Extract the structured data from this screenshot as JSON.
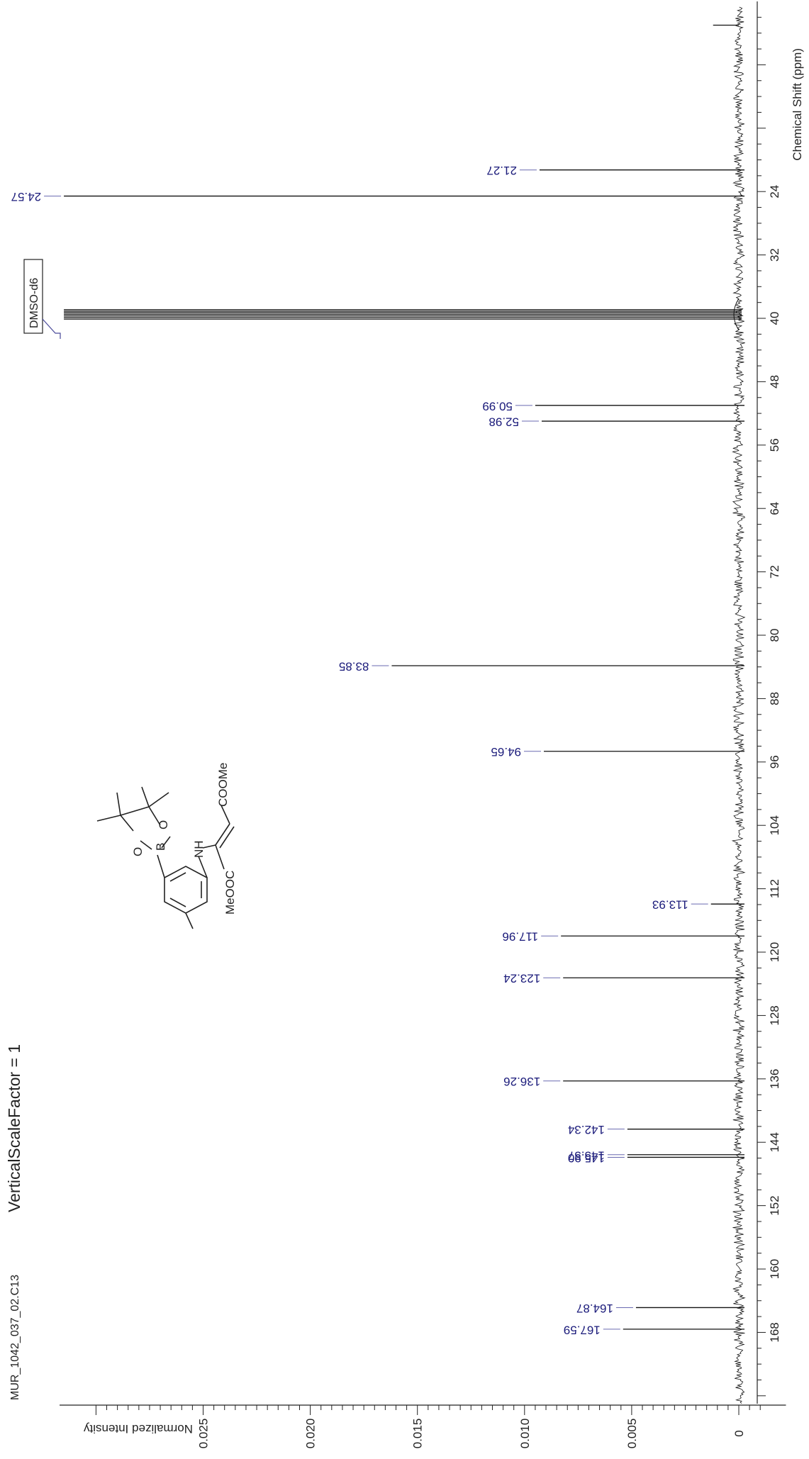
{
  "header": {
    "filename": "MUR_1042_037_02.C13",
    "vsf": "VerticalScaleFactor = 1"
  },
  "solvent": {
    "label": "DMSO-d6"
  },
  "structure": {
    "atoms": [
      "O",
      "B",
      "O",
      "NH",
      "COOMe",
      "MeOOC"
    ]
  },
  "chart_data": {
    "type": "line",
    "xlabel": "Chemical Shift (ppm)",
    "ylabel": "Normalized Intensity",
    "xlim": [
      177,
      0
    ],
    "ylim": [
      -0.001,
      0.0305
    ],
    "x_ticks": [
      24,
      32,
      40,
      48,
      56,
      64,
      72,
      80,
      88,
      96,
      104,
      112,
      120,
      128,
      136,
      144,
      152,
      160,
      168
    ],
    "y_ticks": [
      {
        "value": 0,
        "label": "0"
      },
      {
        "value": 0.005,
        "label": "0.005"
      },
      {
        "value": 0.01,
        "label": "0.010"
      },
      {
        "value": 0.015,
        "label": "0.015"
      },
      {
        "value": 0.02,
        "label": "0.020"
      },
      {
        "value": 0.025,
        "label": "0.025"
      }
    ],
    "peaks": [
      {
        "label": "21.27",
        "shift": 21.27,
        "intensity": 0.0093
      },
      {
        "label": "24.57",
        "shift": 24.57,
        "intensity": 0.0315
      },
      {
        "label": "50.99",
        "shift": 50.99,
        "intensity": 0.0095
      },
      {
        "label": "52.98",
        "shift": 52.98,
        "intensity": 0.0092
      },
      {
        "label": "83.85",
        "shift": 83.85,
        "intensity": 0.0162
      },
      {
        "label": "94.65",
        "shift": 94.65,
        "intensity": 0.0091
      },
      {
        "label": "113.93",
        "shift": 113.93,
        "intensity": 0.0013
      },
      {
        "label": "117.96",
        "shift": 117.96,
        "intensity": 0.0083
      },
      {
        "label": "123.24",
        "shift": 123.24,
        "intensity": 0.0082
      },
      {
        "label": "136.26",
        "shift": 136.26,
        "intensity": 0.0082
      },
      {
        "label": "142.34",
        "shift": 142.34,
        "intensity": 0.0052
      },
      {
        "label": "145.57",
        "shift": 145.57,
        "intensity": 0.0052
      },
      {
        "label": "145.90",
        "shift": 145.9,
        "intensity": 0.0052
      },
      {
        "label": "164.87",
        "shift": 164.87,
        "intensity": 0.0048
      },
      {
        "label": "167.59",
        "shift": 167.59,
        "intensity": 0.0054
      }
    ],
    "solvent_peaks": [
      {
        "shift": 38.9,
        "intensity": 0.0315
      },
      {
        "shift": 39.1,
        "intensity": 0.0315
      },
      {
        "shift": 39.3,
        "intensity": 0.0315
      },
      {
        "shift": 39.5,
        "intensity": 0.0315
      },
      {
        "shift": 39.7,
        "intensity": 0.0315
      },
      {
        "shift": 39.9,
        "intensity": 0.0315
      },
      {
        "shift": 40.1,
        "intensity": 0.0315
      }
    ]
  }
}
